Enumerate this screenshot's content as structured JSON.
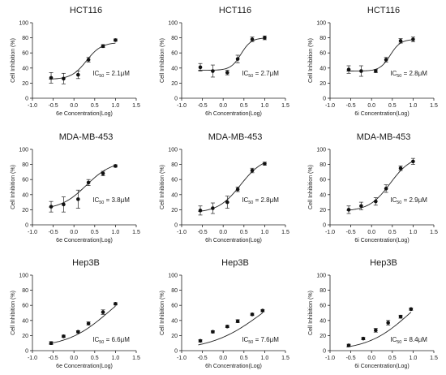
{
  "figure": {
    "ylabel": "Cell Inhibition (%)",
    "ic50_prefix": "IC",
    "ic50_sub": "50",
    "ic50_joiner": " = ",
    "xticks": [
      -1.0,
      -0.5,
      0.0,
      0.5,
      1.0,
      1.5
    ],
    "xtick_labels": [
      "-1.0",
      "-0.5",
      "0.0",
      "0.5",
      "1.0",
      "1.5"
    ],
    "yticks": [
      0,
      20,
      40,
      60,
      80,
      100
    ],
    "ytick_labels": [
      "0",
      "20",
      "40",
      "60",
      "80",
      "100"
    ]
  },
  "chart_data": [
    {
      "type": "scatter",
      "title": "HCT116",
      "xlabel": "6e Concentration(Log)",
      "ylabel": "Cell Inhibition (%)",
      "xlim": [
        -1.0,
        1.5
      ],
      "ylim": [
        0,
        100
      ],
      "ic50": "2.1μM",
      "x": [
        -0.55,
        -0.25,
        0.1,
        0.35,
        0.7,
        1.0
      ],
      "y": [
        27,
        26,
        31,
        51,
        69,
        77
      ],
      "err": [
        7,
        7,
        5,
        3,
        2,
        1.5
      ],
      "curve": {
        "bottom": 25,
        "top": 74,
        "logEC50": 0.3,
        "hill": 2.4
      }
    },
    {
      "type": "scatter",
      "title": "HCT116",
      "xlabel": "6h Concentration(Log)",
      "ylabel": "Cell Inhibition (%)",
      "xlim": [
        -1.0,
        1.5
      ],
      "ylim": [
        0,
        100
      ],
      "ic50": "2.7μM",
      "x": [
        -0.55,
        -0.25,
        0.1,
        0.35,
        0.7,
        1.0
      ],
      "y": [
        41,
        36,
        34,
        52,
        78,
        80
      ],
      "err": [
        5,
        8,
        3,
        5,
        3,
        2.5
      ],
      "curve": {
        "bottom": 37,
        "top": 80,
        "logEC50": 0.43,
        "hill": 3.5
      }
    },
    {
      "type": "scatter",
      "title": "HCT116",
      "xlabel": "6i Concentration(Log)",
      "ylabel": "Cell Inhibition (%)",
      "xlim": [
        -1.0,
        1.5
      ],
      "ylim": [
        0,
        100
      ],
      "ic50": "2.8μM",
      "x": [
        -0.55,
        -0.25,
        0.1,
        0.35,
        0.7,
        1.0
      ],
      "y": [
        38,
        36,
        36,
        51,
        76,
        78
      ],
      "err": [
        5,
        7,
        2,
        3,
        3,
        3
      ],
      "curve": {
        "bottom": 36,
        "top": 78,
        "logEC50": 0.45,
        "hill": 3.5
      }
    },
    {
      "type": "scatter",
      "title": "MDA-MB-453",
      "xlabel": "6e Concentration(Log)",
      "ylabel": "Cell Inhibition (%)",
      "xlim": [
        -1.0,
        1.5
      ],
      "ylim": [
        0,
        100
      ],
      "ic50": "3.8μM",
      "x": [
        -0.55,
        -0.25,
        0.1,
        0.35,
        0.7,
        1.0
      ],
      "y": [
        24,
        27,
        34,
        56,
        68,
        78
      ],
      "err": [
        7,
        10,
        12,
        4,
        3,
        1.5
      ],
      "curve": {
        "bottom": 20,
        "top": 85,
        "logEC50": 0.3,
        "hill": 1.4
      }
    },
    {
      "type": "scatter",
      "title": "MDA-MB-453",
      "xlabel": "6h Concentration(Log)",
      "ylabel": "Cell Inhibition (%)",
      "xlim": [
        -1.0,
        1.5
      ],
      "ylim": [
        0,
        100
      ],
      "ic50": "2.8μM",
      "x": [
        -0.55,
        -0.25,
        0.1,
        0.35,
        0.7,
        1.0
      ],
      "y": [
        19,
        22,
        30,
        47,
        72,
        81
      ],
      "err": [
        6,
        7,
        8,
        3,
        3,
        2
      ],
      "curve": {
        "bottom": 16,
        "top": 90,
        "logEC50": 0.42,
        "hill": 1.6
      }
    },
    {
      "type": "scatter",
      "title": "MDA-MB-453",
      "xlabel": "6i Concentration(Log)",
      "ylabel": "Cell Inhibition (%)",
      "xlim": [
        -1.0,
        1.5
      ],
      "ylim": [
        0,
        100
      ],
      "ic50": "2.9μM",
      "x": [
        -0.55,
        -0.25,
        0.1,
        0.35,
        0.7,
        1.0
      ],
      "y": [
        20,
        25,
        31,
        48,
        75,
        84
      ],
      "err": [
        5,
        5,
        5,
        5,
        3,
        4
      ],
      "curve": {
        "bottom": 18,
        "top": 92,
        "logEC50": 0.45,
        "hill": 1.7
      }
    },
    {
      "type": "scatter",
      "title": "Hep3B",
      "xlabel": "6e Concentration(Log)",
      "ylabel": "Cell Inhibition (%)",
      "xlim": [
        -1.0,
        1.5
      ],
      "ylim": [
        0,
        100
      ],
      "ic50": "6.6μM",
      "x": [
        -0.55,
        -0.25,
        0.1,
        0.35,
        0.7,
        1.0
      ],
      "y": [
        10,
        19,
        25,
        36,
        51,
        62
      ],
      "err": [
        2,
        1.5,
        1.5,
        2,
        3,
        1.5
      ],
      "curve": {
        "bottom": 4,
        "top": 100,
        "logEC50": 0.85,
        "hill": 0.85
      }
    },
    {
      "type": "scatter",
      "title": "Hep3B",
      "xlabel": "6h Concentration(Log)",
      "ylabel": "Cell Inhibition (%)",
      "xlim": [
        -1.0,
        1.5
      ],
      "ylim": [
        0,
        100
      ],
      "ic50": "7.6μM",
      "x": [
        -0.55,
        -0.25,
        0.1,
        0.35,
        0.7,
        0.95
      ],
      "y": [
        13,
        25,
        32,
        39,
        48,
        53
      ],
      "err": [
        1.5,
        1.5,
        1.5,
        2,
        1.5,
        1.5
      ],
      "curve": {
        "bottom": 0,
        "top": 100,
        "logEC50": 0.95,
        "hill": 0.7
      }
    },
    {
      "type": "scatter",
      "title": "Hep3B",
      "xlabel": "6i Concentration(Log)",
      "ylabel": "Cell Inhibition (%)",
      "xlim": [
        -1.0,
        1.5
      ],
      "ylim": [
        0,
        100
      ],
      "ic50": "8.4μM",
      "x": [
        -0.55,
        -0.2,
        0.1,
        0.4,
        0.7,
        0.95
      ],
      "y": [
        7,
        16,
        27,
        37,
        45,
        55
      ],
      "err": [
        1.5,
        1.5,
        2.5,
        3,
        2,
        1.5
      ],
      "curve": {
        "bottom": 0,
        "top": 100,
        "logEC50": 0.93,
        "hill": 0.85
      }
    }
  ]
}
